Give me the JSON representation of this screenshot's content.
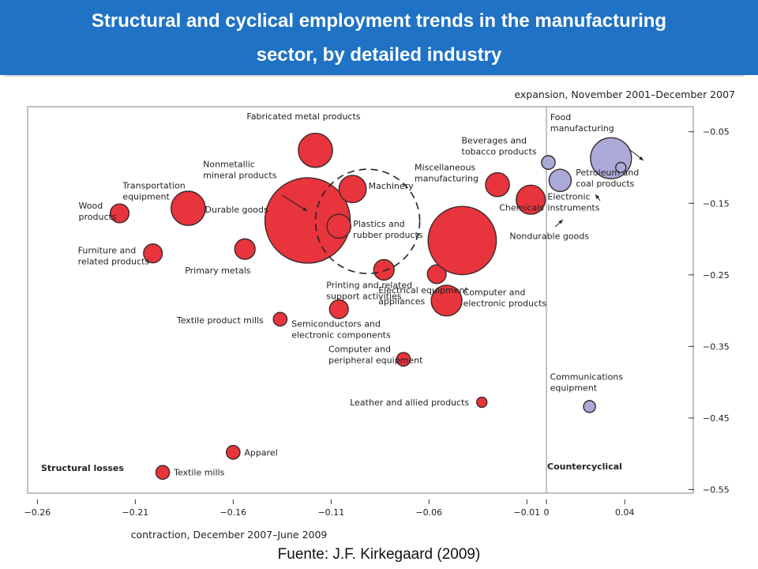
{
  "header": {
    "title_line1": "Structural and cyclical employment trends in the manufacturing",
    "title_line2": "sector, by detailed industry"
  },
  "footer": {
    "source": "Fuente: J.F. Kirkegaard (2009)"
  },
  "colors": {
    "banner": "#1f72c4",
    "red": "#e8343c",
    "lavender": "#aaa9d8",
    "outline": "#3a2a2a"
  },
  "chart_data": {
    "type": "scatter",
    "xlabel": "contraction, December 2007–June 2009",
    "ylabel": "expansion, November 2001–December 2007",
    "xlim": [
      -0.265,
      0.075
    ],
    "ylim": [
      -0.555,
      -0.015
    ],
    "xticks": [
      "−0.26",
      "−0.21",
      "−0.16",
      "−0.11",
      "−0.06",
      "−0.01",
      "0",
      "0.04"
    ],
    "xtick_values": [
      -0.26,
      -0.21,
      -0.16,
      -0.11,
      -0.06,
      -0.01,
      0,
      0.04
    ],
    "yticks": [
      "−0.05",
      "−0.15",
      "−0.25",
      "−0.35",
      "−0.45",
      "−0.55"
    ],
    "ytick_values": [
      -0.05,
      -0.15,
      -0.25,
      -0.35,
      -0.45,
      -0.55
    ],
    "zero_line_x": 0,
    "corner_labels": {
      "left": "Structural losses",
      "right": "Countercyclical"
    },
    "points": [
      {
        "lines": [
          "Fabricated metal products"
        ],
        "x": -0.118,
        "y": -0.076,
        "size": 20,
        "color": "red"
      },
      {
        "lines": [
          "Nonmetallic",
          "mineral products"
        ],
        "x": -0.125,
        "y": -0.138,
        "size": 11,
        "color": "red"
      },
      {
        "lines": [
          "Durable goods"
        ],
        "x": -0.122,
        "y": -0.174,
        "size": 50,
        "color": "red"
      },
      {
        "lines": [
          "Transportation",
          "equipment"
        ],
        "x": -0.183,
        "y": -0.157,
        "size": 20,
        "color": "red"
      },
      {
        "lines": [
          "Wood",
          "products"
        ],
        "x": -0.218,
        "y": -0.164,
        "size": 11,
        "color": "red"
      },
      {
        "lines": [
          "Furniture and",
          "related products"
        ],
        "x": -0.201,
        "y": -0.22,
        "size": 11,
        "color": "red"
      },
      {
        "lines": [
          "Primary metals"
        ],
        "x": -0.154,
        "y": -0.214,
        "size": 12,
        "color": "red"
      },
      {
        "lines": [
          "Machinery"
        ],
        "x": -0.099,
        "y": -0.13,
        "size": 16,
        "color": "red"
      },
      {
        "lines": [
          "Plastics and",
          "rubber products"
        ],
        "x": -0.106,
        "y": -0.182,
        "size": 14,
        "color": "red"
      },
      {
        "lines": [
          "Printing and related",
          "support activities"
        ],
        "x": -0.083,
        "y": -0.243,
        "size": 12,
        "color": "red"
      },
      {
        "lines": [
          "Electrical equipment",
          "appliances"
        ],
        "x": -0.056,
        "y": -0.249,
        "size": 11,
        "color": "red"
      },
      {
        "lines": [
          "Nondurable goods"
        ],
        "x": -0.043,
        "y": -0.202,
        "size": 40,
        "color": "red"
      },
      {
        "lines": [
          "Miscellaneous",
          "manufacturing"
        ],
        "x": -0.025,
        "y": -0.124,
        "size": 14,
        "color": "red"
      },
      {
        "lines": [
          "Chemicals"
        ],
        "x": -0.008,
        "y": -0.145,
        "size": 17,
        "color": "red"
      },
      {
        "lines": [
          "Computer and",
          "electronic products"
        ],
        "x": -0.051,
        "y": -0.286,
        "size": 18,
        "color": "red"
      },
      {
        "lines": [
          "Textile product mills"
        ],
        "x": -0.136,
        "y": -0.312,
        "size": 8,
        "color": "red"
      },
      {
        "lines": [
          "Semiconductors and",
          "electronic components"
        ],
        "x": -0.106,
        "y": -0.298,
        "size": 11,
        "color": "red"
      },
      {
        "lines": [
          "Computer and",
          "peripheral equipment"
        ],
        "x": -0.073,
        "y": -0.368,
        "size": 8,
        "color": "red"
      },
      {
        "lines": [
          "Leather and allied products"
        ],
        "x": -0.033,
        "y": -0.428,
        "size": 6,
        "color": "red"
      },
      {
        "lines": [
          "Apparel"
        ],
        "x": -0.16,
        "y": -0.498,
        "size": 8,
        "color": "red"
      },
      {
        "lines": [
          "Textile mills"
        ],
        "x": -0.196,
        "y": -0.526,
        "size": 8,
        "color": "red"
      },
      {
        "lines": [
          "Beverages and",
          "tobacco products"
        ],
        "x": 0.001,
        "y": -0.093,
        "size": 8,
        "color": "lavender"
      },
      {
        "lines": [
          "Food",
          "manufacturing"
        ],
        "x": 0.033,
        "y": -0.087,
        "size": 24,
        "color": "lavender"
      },
      {
        "lines": [
          "Petroleum and",
          "coal products"
        ],
        "x": 0.038,
        "y": -0.1,
        "size": 6,
        "color": "lavender"
      },
      {
        "lines": [
          "Electronic",
          "instruments"
        ],
        "x": 0.007,
        "y": -0.118,
        "size": 13,
        "color": "lavender"
      },
      {
        "lines": [
          "Communications",
          "equipment"
        ],
        "x": 0.022,
        "y": -0.434,
        "size": 7,
        "color": "lavender"
      }
    ]
  }
}
